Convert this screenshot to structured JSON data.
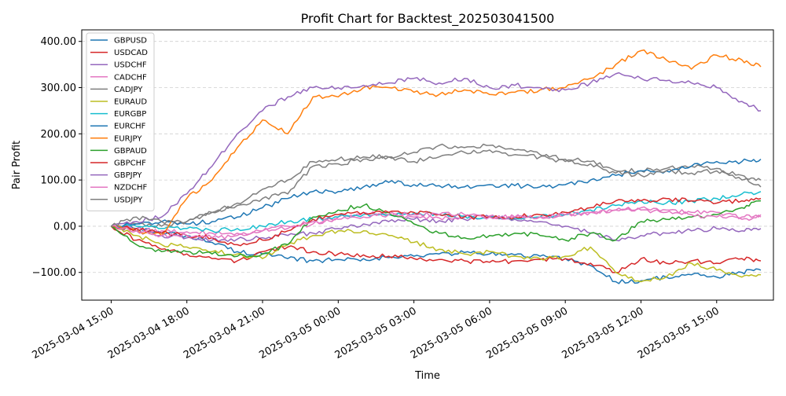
{
  "chart_data": {
    "type": "line",
    "title": "Profit Chart for Backtest_202503041500",
    "xlabel": "Time",
    "ylabel": "Pair Profit",
    "x_ticks": [
      "2025-03-04 15:00",
      "2025-03-04 18:00",
      "2025-03-04 21:00",
      "2025-03-05 00:00",
      "2025-03-05 03:00",
      "2025-03-05 06:00",
      "2025-03-05 09:00",
      "2025-03-05 12:00",
      "2025-03-05 15:00"
    ],
    "y_ticks": [
      "−100.00",
      "0.00",
      "100.00",
      "200.00",
      "300.00",
      "400.00"
    ],
    "xlim": [
      "2025-03-04 13:50",
      "2025-03-05 17:15"
    ],
    "ylim": [
      -160,
      425
    ],
    "grid": "y-dashed",
    "legend_position": "top-left",
    "x": [
      "2025-03-04 15:00",
      "2025-03-04 16:00",
      "2025-03-04 17:00",
      "2025-03-04 18:00",
      "2025-03-04 19:00",
      "2025-03-04 20:00",
      "2025-03-04 21:00",
      "2025-03-04 22:00",
      "2025-03-04 23:00",
      "2025-03-05 00:00",
      "2025-03-05 01:00",
      "2025-03-05 02:00",
      "2025-03-05 03:00",
      "2025-03-05 04:00",
      "2025-03-05 05:00",
      "2025-03-05 06:00",
      "2025-03-05 07:00",
      "2025-03-05 08:00",
      "2025-03-05 09:00",
      "2025-03-05 10:00",
      "2025-03-05 11:00",
      "2025-03-05 12:00",
      "2025-03-05 13:00",
      "2025-03-05 14:00",
      "2025-03-05 15:00",
      "2025-03-05 16:00",
      "2025-03-05 16:45"
    ],
    "series": [
      {
        "name": "GBPUSD",
        "color": "#1f77b4",
        "values": [
          0,
          -5,
          -15,
          -20,
          -35,
          -55,
          -60,
          -70,
          -75,
          -72,
          -70,
          -68,
          -65,
          -60,
          -57,
          -60,
          -62,
          -65,
          -70,
          -85,
          -120,
          -118,
          -110,
          -105,
          -110,
          -100,
          -95
        ]
      },
      {
        "name": "USDCAD",
        "color": "#d62728",
        "values": [
          0,
          -30,
          -50,
          -60,
          -70,
          -75,
          -55,
          -45,
          -55,
          -60,
          -62,
          -65,
          -70,
          -72,
          -75,
          -78,
          -75,
          -72,
          -70,
          -80,
          -100,
          -70,
          -80,
          -75,
          -80,
          -70,
          -75
        ]
      },
      {
        "name": "USDCHF",
        "color": "#9467bd",
        "values": [
          0,
          -10,
          -20,
          -25,
          -30,
          -28,
          -25,
          -20,
          -15,
          -5,
          5,
          10,
          15,
          12,
          15,
          20,
          15,
          10,
          0,
          -15,
          -30,
          -20,
          -15,
          -10,
          -5,
          -10,
          -5
        ]
      },
      {
        "name": "CADCHF",
        "color": "#e377c2",
        "values": [
          0,
          -5,
          -10,
          -12,
          -15,
          -15,
          -10,
          -5,
          5,
          20,
          30,
          25,
          20,
          18,
          20,
          22,
          20,
          20,
          25,
          30,
          35,
          40,
          35,
          30,
          30,
          20,
          25
        ]
      },
      {
        "name": "CADJPY",
        "color": "#7f7f7f",
        "values": [
          0,
          5,
          0,
          10,
          30,
          45,
          60,
          70,
          130,
          135,
          145,
          150,
          160,
          175,
          170,
          175,
          165,
          155,
          145,
          140,
          120,
          120,
          125,
          130,
          125,
          100,
          100
        ]
      },
      {
        "name": "EURAUD",
        "color": "#bcbd22",
        "values": [
          0,
          -20,
          -40,
          -45,
          -55,
          -60,
          -70,
          -40,
          -20,
          -10,
          -10,
          -20,
          -35,
          -50,
          -60,
          -55,
          -65,
          -70,
          -65,
          -45,
          -100,
          -120,
          -110,
          -80,
          -95,
          -110,
          -105
        ]
      },
      {
        "name": "EURGBP",
        "color": "#17becf",
        "values": [
          0,
          0,
          -5,
          -5,
          -10,
          -5,
          0,
          10,
          15,
          20,
          25,
          25,
          28,
          25,
          22,
          20,
          18,
          20,
          25,
          35,
          45,
          55,
          50,
          55,
          60,
          70,
          75
        ]
      },
      {
        "name": "EURCHF",
        "color": "#1f77b4",
        "values": [
          0,
          5,
          10,
          5,
          10,
          20,
          40,
          60,
          75,
          75,
          85,
          95,
          90,
          88,
          85,
          90,
          88,
          85,
          90,
          100,
          110,
          120,
          120,
          130,
          140,
          140,
          145
        ]
      },
      {
        "name": "EURJPY",
        "color": "#ff7f0e",
        "values": [
          0,
          -10,
          -20,
          60,
          100,
          170,
          230,
          200,
          280,
          280,
          300,
          300,
          290,
          285,
          295,
          285,
          290,
          295,
          300,
          320,
          350,
          380,
          360,
          340,
          370,
          360,
          345
        ]
      },
      {
        "name": "GBPAUD",
        "color": "#2ca02c",
        "values": [
          0,
          -40,
          -55,
          -55,
          -60,
          -65,
          -60,
          -40,
          20,
          35,
          45,
          30,
          5,
          -15,
          -25,
          -20,
          -15,
          -20,
          -30,
          -15,
          -30,
          10,
          15,
          20,
          25,
          40,
          55
        ]
      },
      {
        "name": "GBPCHF",
        "color": "#d62728",
        "values": [
          0,
          -5,
          -15,
          -20,
          -25,
          -40,
          -30,
          -10,
          15,
          25,
          30,
          30,
          30,
          25,
          20,
          20,
          20,
          25,
          30,
          40,
          55,
          55,
          60,
          55,
          50,
          55,
          60
        ]
      },
      {
        "name": "GBPJPY",
        "color": "#9467bd",
        "values": [
          0,
          10,
          20,
          70,
          130,
          200,
          250,
          280,
          300,
          300,
          305,
          310,
          320,
          310,
          320,
          300,
          305,
          300,
          295,
          310,
          330,
          320,
          315,
          310,
          300,
          270,
          250
        ]
      },
      {
        "name": "NZDCHF",
        "color": "#e377c2",
        "values": [
          0,
          -10,
          -20,
          -20,
          -25,
          -20,
          -10,
          0,
          10,
          15,
          20,
          25,
          25,
          25,
          25,
          20,
          20,
          20,
          25,
          30,
          35,
          35,
          30,
          25,
          20,
          15,
          20
        ]
      },
      {
        "name": "USDJPY",
        "color": "#7f7f7f",
        "values": [
          0,
          20,
          10,
          10,
          30,
          50,
          80,
          100,
          140,
          145,
          150,
          150,
          140,
          150,
          160,
          165,
          155,
          150,
          140,
          135,
          115,
          110,
          120,
          115,
          120,
          110,
          85
        ]
      }
    ]
  }
}
